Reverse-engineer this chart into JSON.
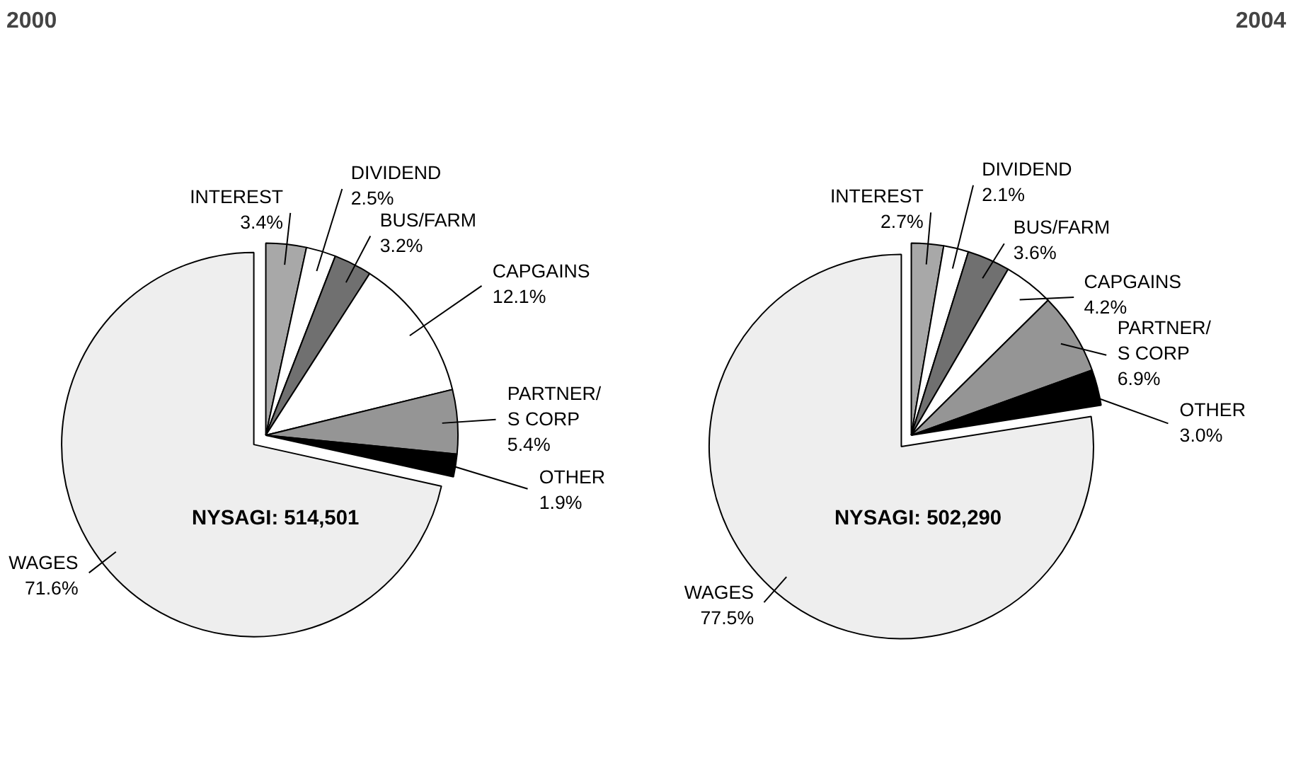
{
  "chart_data": [
    {
      "type": "pie",
      "title": "2000",
      "categories": [
        "INTEREST",
        "DIVIDEND",
        "BUS/FARM",
        "CAPGAINS",
        "PARTNER/S CORP",
        "OTHER",
        "WAGES"
      ],
      "values": [
        3.4,
        2.5,
        3.2,
        12.1,
        5.4,
        1.9,
        71.6
      ],
      "value_labels": [
        "3.4%",
        "2.5%",
        "3.2%",
        "12.1%",
        "5.4%",
        "1.9%",
        "71.6%"
      ],
      "colors": [
        "#a8a8a8",
        "#ffffff",
        "#707070",
        "#ffffff",
        "#959595",
        "#000000",
        "#eeeeee"
      ],
      "annotations": [
        "NYSAGI: 514,501"
      ]
    },
    {
      "type": "pie",
      "title": "2004",
      "categories": [
        "INTEREST",
        "DIVIDEND",
        "BUS/FARM",
        "CAPGAINS",
        "PARTNER/S CORP",
        "OTHER",
        "WAGES"
      ],
      "values": [
        2.7,
        2.1,
        3.6,
        4.2,
        6.9,
        3.0,
        77.5
      ],
      "value_labels": [
        "2.7%",
        "2.1%",
        "3.6%",
        "4.2%",
        "6.9%",
        "3.0%",
        "77.5%"
      ],
      "colors": [
        "#a8a8a8",
        "#ffffff",
        "#707070",
        "#ffffff",
        "#959595",
        "#000000",
        "#eeeeee"
      ],
      "annotations": [
        "NYSAGI:  502,290"
      ]
    }
  ]
}
